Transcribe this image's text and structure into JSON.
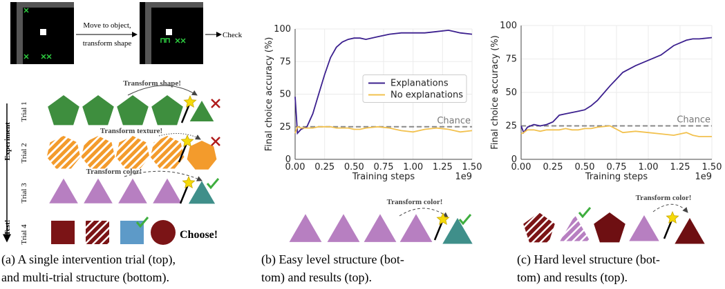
{
  "panel_a": {
    "top_step": [
      "Move to object,",
      "transform shape"
    ],
    "top_result": "Check",
    "side_experiment": "Experiment",
    "side_test": "Test!",
    "trials": [
      "Trial 1",
      "Trial 2",
      "Trial 3",
      "Trial 4"
    ],
    "annotations": [
      "Transform shape!",
      "Transform texture!",
      "Transform color!"
    ],
    "choose": "Choose!"
  },
  "panel_b": {
    "annotation": "Transform color!"
  },
  "panel_c": {
    "annotation": "Transform color!"
  },
  "captions": [
    [
      "(a) A single intervention trial (top),",
      "and multi-trial structure (bottom)."
    ],
    [
      "(b) Easy level structure (bot-",
      "tom) and results (top)."
    ],
    [
      "(c) Hard level structure (bot-",
      "tom) and results (top)."
    ]
  ],
  "chart_data": [
    {
      "type": "line",
      "x_label": "Training steps",
      "y_label": "Final choice accuracy (%)",
      "x_offset_label": "1e9",
      "x": [
        0,
        0.02,
        0.05,
        0.1,
        0.15,
        0.2,
        0.25,
        0.3,
        0.35,
        0.4,
        0.45,
        0.5,
        0.55,
        0.6,
        0.7,
        0.8,
        0.9,
        1.0,
        1.1,
        1.2,
        1.3,
        1.35,
        1.4,
        1.5
      ],
      "series": [
        {
          "name": "Explanations",
          "color": "#3b1f8e",
          "values": [
            48,
            20,
            23,
            25,
            35,
            50,
            65,
            78,
            86,
            90,
            92,
            93,
            93,
            92,
            94,
            96,
            97,
            97,
            97,
            98,
            99,
            98,
            97,
            96
          ]
        },
        {
          "name": "No explanations",
          "color": "#f2c14e",
          "values": [
            20,
            25,
            24,
            24,
            24,
            25,
            25,
            25,
            24,
            24,
            24,
            23,
            23,
            24,
            25,
            24,
            22,
            21,
            23,
            24,
            23,
            22,
            21,
            22
          ]
        }
      ],
      "chance": {
        "label": "Chance",
        "value": 25
      },
      "xlim": [
        0,
        1.5
      ],
      "ylim": [
        0,
        100
      ],
      "xticks": [
        {
          "value": 0,
          "label": "0.00"
        },
        {
          "value": 0.25,
          "label": "0.25"
        },
        {
          "value": 0.5,
          "label": "0.50"
        },
        {
          "value": 0.75,
          "label": "0.75"
        },
        {
          "value": 1,
          "label": "1.00"
        },
        {
          "value": 1.25,
          "label": "1.25"
        },
        {
          "value": 1.5,
          "label": "1.50"
        }
      ],
      "yticks": [
        0,
        25,
        50,
        75,
        100
      ],
      "grid": true,
      "legend": "right"
    },
    {
      "type": "line",
      "x_label": "Training steps",
      "y_label": "Final choice accuracy (%)",
      "x_offset_label": "1e9",
      "x": [
        0,
        0.02,
        0.05,
        0.1,
        0.15,
        0.2,
        0.25,
        0.3,
        0.35,
        0.4,
        0.45,
        0.5,
        0.55,
        0.6,
        0.7,
        0.8,
        0.9,
        1.0,
        1.1,
        1.2,
        1.3,
        1.35,
        1.4,
        1.5
      ],
      "series": [
        {
          "name": "Explanations",
          "color": "#3b1f8e",
          "values": [
            25,
            20,
            24,
            26,
            25,
            26,
            28,
            33,
            34,
            35,
            36,
            37,
            40,
            44,
            55,
            65,
            70,
            74,
            78,
            85,
            89,
            90,
            90,
            91
          ]
        },
        {
          "name": "No explanations",
          "color": "#f2c14e",
          "values": [
            19,
            20,
            22,
            22,
            21,
            22,
            22,
            22,
            23,
            22,
            22,
            23,
            23,
            24,
            25,
            20,
            21,
            20,
            19,
            18,
            20,
            18,
            17,
            17
          ]
        }
      ],
      "chance": {
        "label": "Chance",
        "value": 25
      },
      "xlim": [
        0,
        1.5
      ],
      "ylim": [
        0,
        100
      ],
      "xticks": [
        {
          "value": 0,
          "label": "0.00"
        },
        {
          "value": 0.25,
          "label": "0.25"
        },
        {
          "value": 0.5,
          "label": "0.50"
        },
        {
          "value": 0.75,
          "label": "0.75"
        },
        {
          "value": 1,
          "label": "1.00"
        },
        {
          "value": 1.25,
          "label": "1.25"
        },
        {
          "value": 1.5,
          "label": "1.50"
        }
      ],
      "yticks": [
        0,
        25,
        50,
        75,
        100
      ],
      "grid": true,
      "legend": false
    }
  ]
}
